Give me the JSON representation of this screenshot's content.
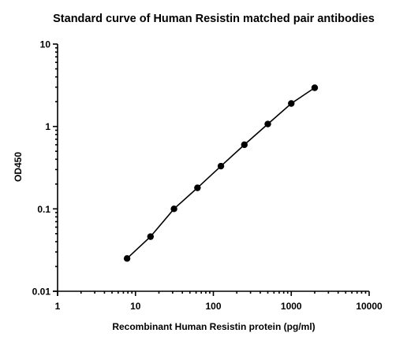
{
  "chart_data": {
    "type": "line",
    "title": "Standard curve of Human Resistin matched pair antibodies",
    "xlabel": "Recombinant Human Resistin protein (pg/ml)",
    "ylabel": "OD450",
    "x_scale": "log",
    "y_scale": "log",
    "xlim": [
      1,
      10000
    ],
    "ylim": [
      0.01,
      10
    ],
    "x_ticks": [
      "1",
      "10",
      "100",
      "1000",
      "10000"
    ],
    "y_ticks": [
      "0.01",
      "0.1",
      "1",
      "10"
    ],
    "grid": false,
    "legend": "none",
    "series": [
      {
        "x": [
          7.8,
          15.6,
          31.25,
          62.5,
          125,
          250,
          500,
          1000,
          2000
        ],
        "y": [
          0.025,
          0.046,
          0.1,
          0.18,
          0.33,
          0.6,
          1.07,
          1.9,
          2.95
        ],
        "color": "#000000",
        "marker": "circle"
      }
    ]
  }
}
